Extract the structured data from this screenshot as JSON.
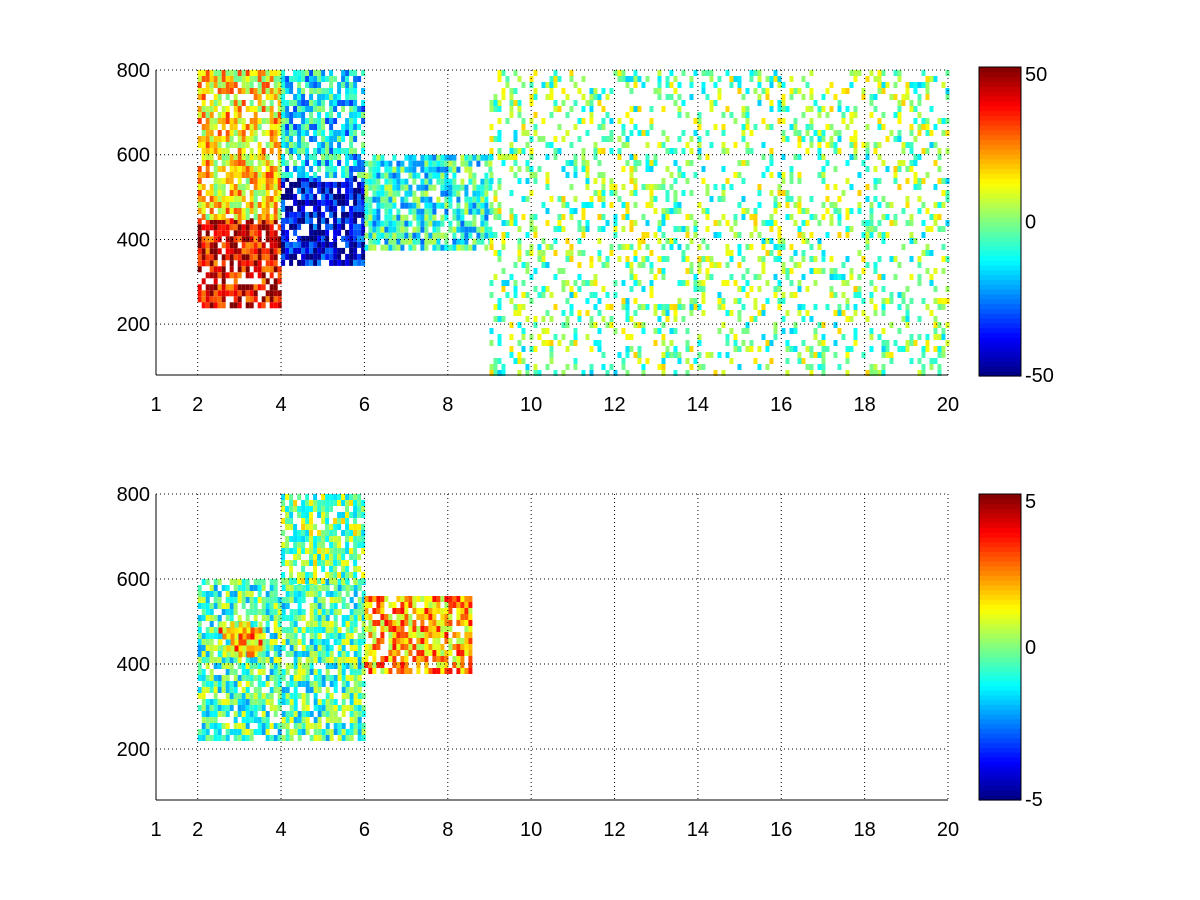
{
  "chart_data": [
    {
      "type": "heatmap",
      "title": "",
      "xlabel": "",
      "ylabel": "",
      "xlim": [
        1,
        20
      ],
      "ylim": [
        80,
        800
      ],
      "xticks": [
        1,
        2,
        4,
        6,
        8,
        10,
        12,
        14,
        16,
        18,
        20
      ],
      "xtick_labels": [
        "1",
        "2",
        "4",
        "6",
        "8",
        "10",
        "12",
        "14",
        "16",
        "18",
        "20"
      ],
      "yticks": [
        200,
        400,
        600,
        800
      ],
      "ytick_labels": [
        "200",
        "400",
        "600",
        "800"
      ],
      "grid": true,
      "colormap": "jet",
      "clim": [
        -50,
        50
      ],
      "colorbar_ticks": [
        -50,
        0,
        50
      ],
      "colorbar_labels": [
        "-50",
        "0",
        "50"
      ],
      "regions": [
        {
          "x": [
            2.0,
            4.0
          ],
          "y": [
            250,
            450
          ],
          "value": 40
        },
        {
          "x": [
            2.0,
            4.0
          ],
          "y": [
            450,
            800
          ],
          "value": 15
        },
        {
          "x": [
            4.0,
            6.0
          ],
          "y": [
            350,
            550
          ],
          "value": -40
        },
        {
          "x": [
            4.0,
            6.0
          ],
          "y": [
            550,
            800
          ],
          "value": -15
        },
        {
          "x": [
            6.0,
            9.0
          ],
          "y": [
            380,
            600
          ],
          "value": -10
        },
        {
          "x": [
            9.0,
            20.0
          ],
          "y": [
            80,
            800
          ],
          "value": 0
        }
      ]
    },
    {
      "type": "heatmap",
      "title": "",
      "xlabel": "",
      "ylabel": "",
      "xlim": [
        1,
        20
      ],
      "ylim": [
        80,
        800
      ],
      "xticks": [
        1,
        2,
        4,
        6,
        8,
        10,
        12,
        14,
        16,
        18,
        20
      ],
      "xtick_labels": [
        "1",
        "2",
        "4",
        "6",
        "8",
        "10",
        "12",
        "14",
        "16",
        "18",
        "20"
      ],
      "yticks": [
        200,
        400,
        600,
        800
      ],
      "ytick_labels": [
        "200",
        "400",
        "600",
        "800"
      ],
      "grid": true,
      "colormap": "jet",
      "clim": [
        -5,
        5
      ],
      "colorbar_ticks": [
        -5,
        0,
        5
      ],
      "colorbar_labels": [
        "-5",
        "0",
        "5"
      ],
      "regions": [
        {
          "x": [
            2.0,
            6.0
          ],
          "y": [
            230,
            600
          ],
          "value": -0.5
        },
        {
          "x": [
            4.0,
            6.0
          ],
          "y": [
            600,
            800
          ],
          "value": 0
        },
        {
          "x": [
            6.0,
            8.5
          ],
          "y": [
            380,
            560
          ],
          "value": 2
        },
        {
          "x": [
            2.5,
            3.5
          ],
          "y": [
            420,
            500
          ],
          "value": 2
        }
      ]
    }
  ]
}
